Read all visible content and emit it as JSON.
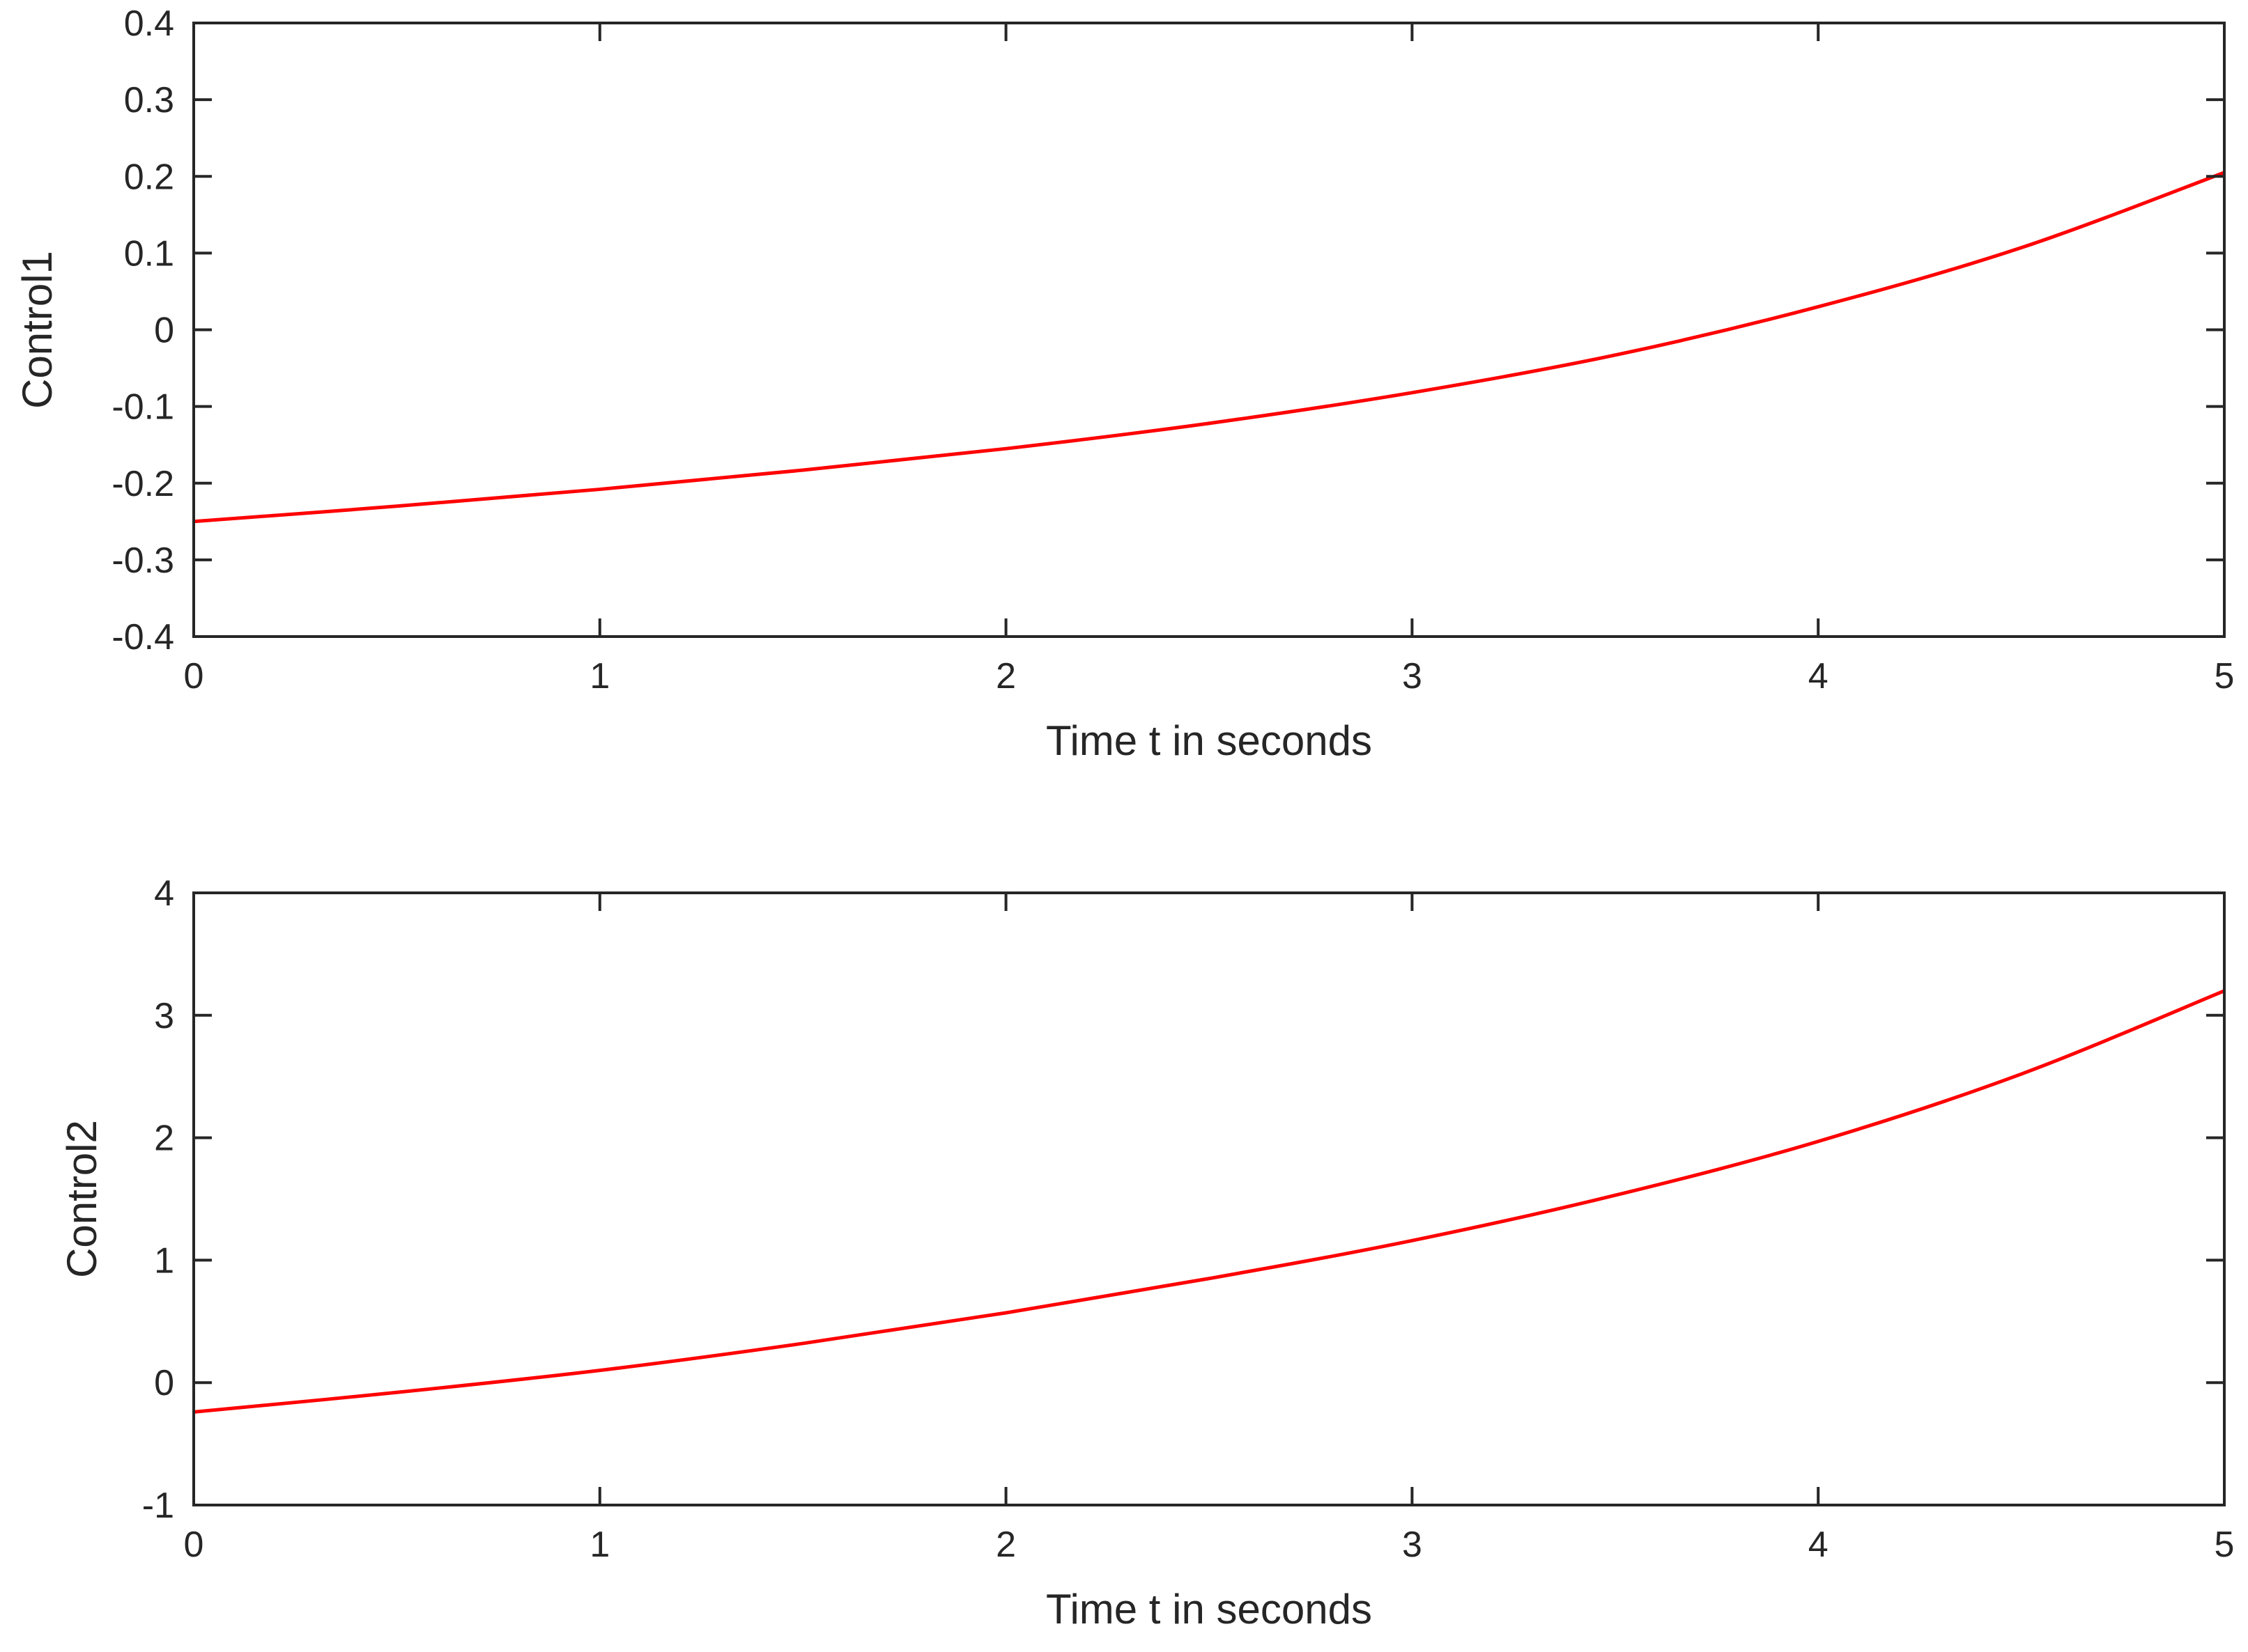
{
  "chart_data": [
    {
      "type": "line",
      "title": "",
      "xlabel": "Time t in seconds",
      "ylabel": "Control1",
      "xlim": [
        0,
        5
      ],
      "ylim": [
        -0.4,
        0.4
      ],
      "xticks": [
        0,
        1,
        2,
        3,
        4,
        5
      ],
      "xtick_labels": [
        "0",
        "1",
        "2",
        "3",
        "4",
        "5"
      ],
      "yticks": [
        -0.4,
        -0.3,
        -0.2,
        -0.1,
        0,
        0.1,
        0.2,
        0.3,
        0.4
      ],
      "ytick_labels": [
        "-0.4",
        "-0.3",
        "-0.2",
        "-0.1",
        "0",
        "0.1",
        "0.2",
        "0.3",
        "0.4"
      ],
      "grid": false,
      "series": [
        {
          "color": "#ff0000",
          "x": [
            0,
            0.5,
            1,
            1.5,
            2,
            2.5,
            3,
            3.5,
            4,
            4.5,
            5
          ],
          "y": [
            -0.25,
            -0.23,
            -0.208,
            -0.183,
            -0.155,
            -0.122,
            -0.082,
            -0.033,
            0.03,
            0.107,
            0.205
          ]
        }
      ]
    },
    {
      "type": "line",
      "title": "",
      "xlabel": "Time t in seconds",
      "ylabel": "Control2",
      "xlim": [
        0,
        5
      ],
      "ylim": [
        -1,
        4
      ],
      "xticks": [
        0,
        1,
        2,
        3,
        4,
        5
      ],
      "xtick_labels": [
        "0",
        "1",
        "2",
        "3",
        "4",
        "5"
      ],
      "yticks": [
        -1,
        0,
        1,
        2,
        3,
        4
      ],
      "ytick_labels": [
        "-1",
        "0",
        "1",
        "2",
        "3",
        "4"
      ],
      "grid": false,
      "series": [
        {
          "color": "#ff0000",
          "x": [
            0,
            0.5,
            1,
            1.5,
            2,
            2.5,
            3,
            3.5,
            4,
            4.5,
            5
          ],
          "y": [
            -0.24,
            -0.08,
            0.1,
            0.32,
            0.57,
            0.85,
            1.16,
            1.53,
            1.97,
            2.52,
            3.2
          ]
        }
      ]
    }
  ]
}
